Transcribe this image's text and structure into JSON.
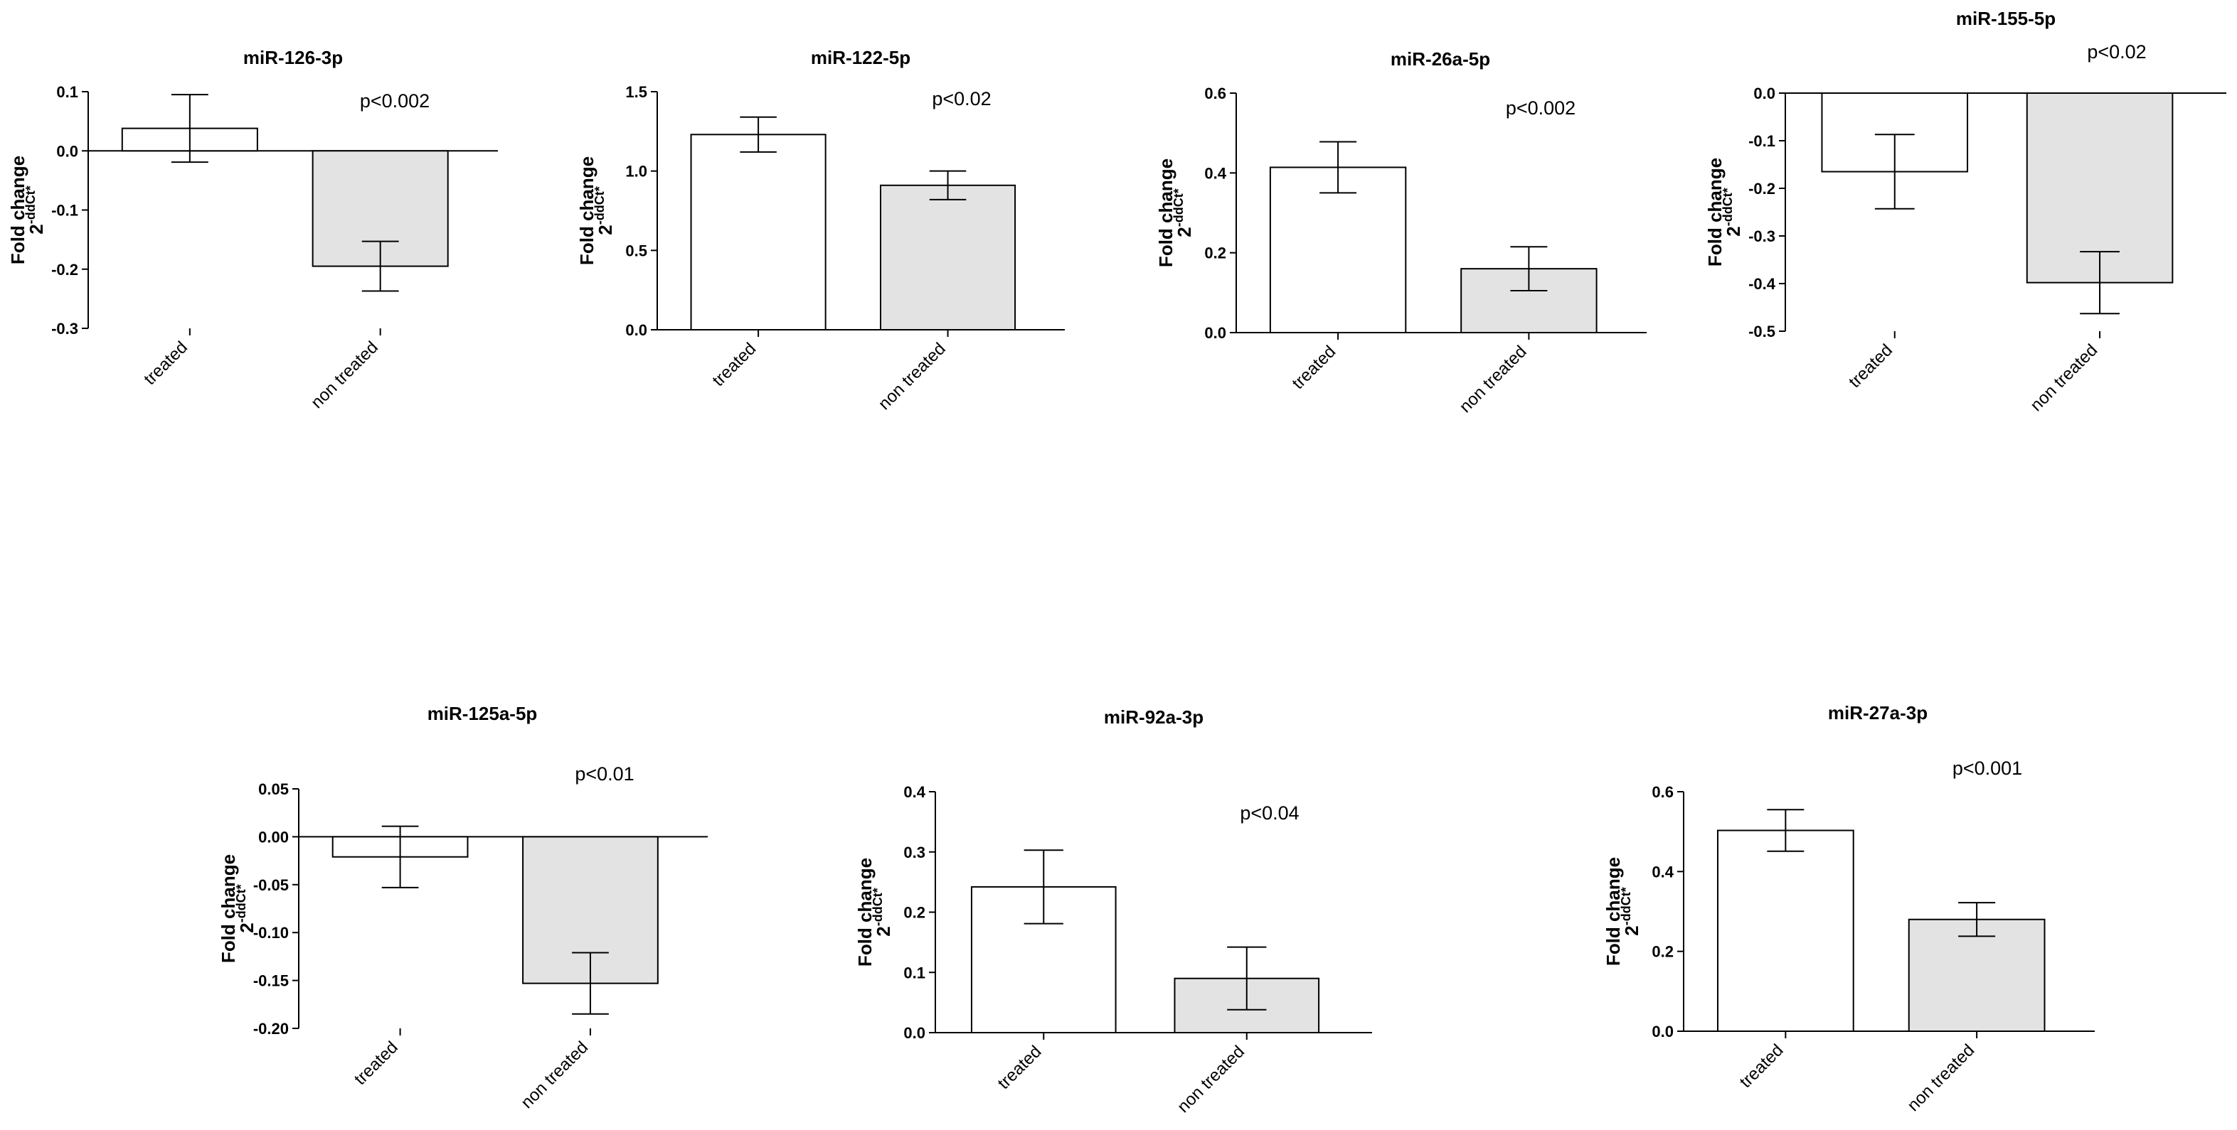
{
  "chart_data": [
    {
      "type": "bar",
      "title": "miR-126-3p",
      "categories": [
        "treated",
        "non treated"
      ],
      "values": [
        0.038,
        -0.195
      ],
      "errors": [
        0.057,
        0.042
      ],
      "ylim": [
        -0.3,
        0.1
      ],
      "yticks": [
        -0.3,
        -0.2,
        -0.1,
        0.0,
        0.1
      ],
      "ytick_labels": [
        "-0.3",
        "-0.2",
        "-0.1",
        "0.0",
        "0.1"
      ],
      "ylabel": "Fold change",
      "ylabel_sub": "2-ddCt*",
      "annotation": "p<0.002"
    },
    {
      "type": "bar",
      "title": "miR-122-5p",
      "categories": [
        "treated",
        "non treated"
      ],
      "values": [
        1.23,
        0.91
      ],
      "errors": [
        0.11,
        0.09
      ],
      "ylim": [
        0,
        1.5
      ],
      "yticks": [
        0,
        0.5,
        1.0,
        1.5
      ],
      "ytick_labels": [
        "0.0",
        "0.5",
        "1.0",
        "1.5"
      ],
      "ylabel": "Fold change",
      "ylabel_sub": "2-ddCt*",
      "annotation": "p<0.02"
    },
    {
      "type": "bar",
      "title": "miR-26a-5p",
      "categories": [
        "treated",
        "non treated"
      ],
      "values": [
        0.414,
        0.16
      ],
      "errors": [
        0.064,
        0.055
      ],
      "ylim": [
        0,
        0.6
      ],
      "yticks": [
        0,
        0.2,
        0.4,
        0.6
      ],
      "ytick_labels": [
        "0.0",
        "0.2",
        "0.4",
        "0.6"
      ],
      "ylabel": "Fold change",
      "ylabel_sub": "2-ddCt*",
      "annotation": "p<0.002"
    },
    {
      "type": "bar",
      "title": "miR-155-5p",
      "categories": [
        "treated",
        "non treated"
      ],
      "values": [
        -0.165,
        -0.398
      ],
      "errors": [
        0.078,
        0.065
      ],
      "ylim": [
        -0.5,
        0
      ],
      "yticks": [
        -0.5,
        -0.4,
        -0.3,
        -0.2,
        -0.1,
        0.0
      ],
      "ytick_labels": [
        "-0.5",
        "-0.4",
        "-0.3",
        "-0.2",
        "-0.1",
        "0.0"
      ],
      "ylabel": "Fold change",
      "ylabel_sub": "2-ddCt*",
      "annotation": "p<0.02"
    },
    {
      "type": "bar",
      "title": "miR-125a-5p",
      "categories": [
        "treated",
        "non treated"
      ],
      "values": [
        -0.021,
        -0.153
      ],
      "errors": [
        0.032,
        0.032
      ],
      "ylim": [
        -0.2,
        0.05
      ],
      "yticks": [
        -0.2,
        -0.15,
        -0.1,
        -0.05,
        0.0,
        0.05
      ],
      "ytick_labels": [
        "-0.20",
        "-0.15",
        "-0.10",
        "-0.05",
        "0.00",
        "0.05"
      ],
      "ylabel": "Fold change",
      "ylabel_sub": "2-ddCt*",
      "annotation": "p<0.01"
    },
    {
      "type": "bar",
      "title": "miR-92a-3p",
      "categories": [
        "treated",
        "non treated"
      ],
      "values": [
        0.242,
        0.09
      ],
      "errors": [
        0.061,
        0.052
      ],
      "ylim": [
        0,
        0.4
      ],
      "yticks": [
        0,
        0.1,
        0.2,
        0.3,
        0.4
      ],
      "ytick_labels": [
        "0.0",
        "0.1",
        "0.2",
        "0.3",
        "0.4"
      ],
      "ylabel": "Fold change",
      "ylabel_sub": "2-ddCt*",
      "annotation": "p<0.04"
    },
    {
      "type": "bar",
      "title": "miR-27a-3p",
      "categories": [
        "treated",
        "non treated"
      ],
      "values": [
        0.503,
        0.28
      ],
      "errors": [
        0.052,
        0.042
      ],
      "ylim": [
        0,
        0.6
      ],
      "yticks": [
        0,
        0.2,
        0.4,
        0.6
      ],
      "ytick_labels": [
        "0.0",
        "0.2",
        "0.4",
        "0.6"
      ],
      "ylabel": "Fold change",
      "ylabel_sub": "2-ddCt*",
      "annotation": "p<0.001"
    }
  ],
  "colors": {
    "treated_fill": "#ffffff",
    "non_treated_fill": "#e3e3e3",
    "stroke": "#000000"
  }
}
